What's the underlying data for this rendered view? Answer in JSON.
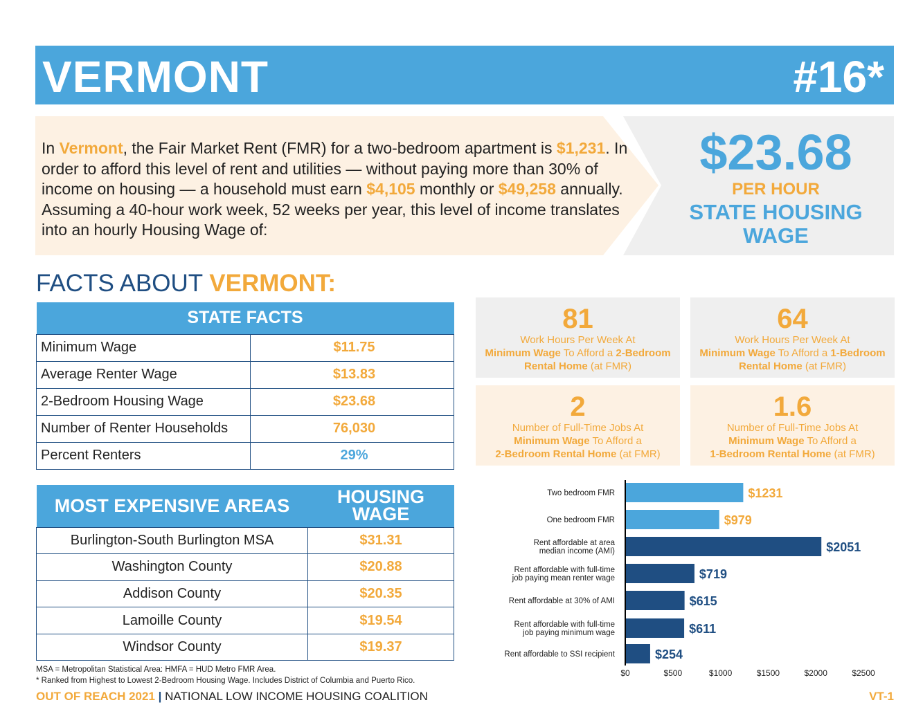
{
  "header": {
    "state": "VERMONT",
    "rank": "#16*"
  },
  "intro": {
    "p1": "In ",
    "state": "Vermont",
    "p2": ", the Fair Market Rent (FMR) for a two-bedroom apartment is ",
    "fmr": "$1,231",
    "p3": ". In order to afford this level of rent and utilities — without paying more than 30% of income on housing — a household must earn ",
    "monthly": "$4,105",
    "p4": " monthly or ",
    "annual": "$49,258",
    "p5": " annually. Assuming a 40-hour work week, 52 weeks per year, this level of income translates into an hourly Housing Wage of:"
  },
  "housing_wage": {
    "value": "$23.68",
    "per_hour": "PER HOUR",
    "label": "STATE HOUSING WAGE"
  },
  "facts_title": {
    "prefix": "FACTS ABOUT ",
    "state": "VERMONT:"
  },
  "state_facts": {
    "header": "STATE FACTS",
    "rows": [
      {
        "label": "Minimum Wage",
        "value": "$11.75"
      },
      {
        "label": "Average Renter Wage",
        "value": "$13.83"
      },
      {
        "label": "2-Bedroom Housing Wage",
        "value": "$23.68"
      },
      {
        "label": "Number of Renter Households",
        "value": "76,030"
      },
      {
        "label": "Percent Renters",
        "value": "29%"
      }
    ]
  },
  "expensive": {
    "header_area": "MOST EXPENSIVE AREAS",
    "header_wage": "HOUSING WAGE",
    "rows": [
      {
        "area": "Burlington-South Burlington MSA",
        "wage": "$31.31"
      },
      {
        "area": "Washington County",
        "wage": "$20.88"
      },
      {
        "area": "Addison County",
        "wage": "$20.35"
      },
      {
        "area": "Lamoille County",
        "wage": "$19.54"
      },
      {
        "area": "Windsor County",
        "wage": "$19.37"
      }
    ]
  },
  "cards": [
    {
      "number": "81",
      "line1": "Work Hours Per Week At",
      "b1": "Minimum Wage",
      "m1": " To Afford a ",
      "b2": "2-Bedroom Rental Home",
      "m2": " (at FMR)"
    },
    {
      "number": "64",
      "line1": "Work Hours Per Week At",
      "b1": "Minimum Wage",
      "m1": " To Afford a ",
      "b2": "1-Bedroom Rental Home",
      "m2": " (at FMR)"
    },
    {
      "number": "2",
      "line1": "Number of Full-Time Jobs At",
      "b1": "Minimum Wage",
      "m1": " To Afford a ",
      "b2": "2-Bedroom Rental Home",
      "m2": " (at FMR)"
    },
    {
      "number": "1.6",
      "line1": "Number of Full-Time Jobs At",
      "b1": "Minimum Wage",
      "m1": " To Afford a ",
      "b2": "1-Bedroom Rental Home",
      "m2": " (at FMR)"
    }
  ],
  "chart_data": {
    "type": "bar",
    "orientation": "horizontal",
    "categories": [
      "Two bedroom FMR",
      "One bedroom FMR",
      "Rent affordable at area median income (AMI)",
      "Rent affordable with full-time job paying mean renter wage",
      "Rent affordable at 30% of AMI",
      "Rent affordable with full-time job paying minimum wage",
      "Rent affordable to SSI recipient"
    ],
    "values": [
      1231,
      979,
      2051,
      719,
      615,
      611,
      254
    ],
    "data_labels": [
      "$1231",
      "$979",
      "$2051",
      "$719",
      "$615",
      "$611",
      "$254"
    ],
    "xlim": [
      0,
      2500
    ],
    "x_ticks": [
      "$0",
      "$500",
      "$1000",
      "$1500",
      "$2000",
      "$2500"
    ],
    "bar_colors": [
      "#4BA6DC",
      "#4BA6DC",
      "#1F4E82",
      "#1F4E82",
      "#1F4E82",
      "#1F4E82",
      "#1F4E82"
    ],
    "label_colors": [
      "#F2A93B",
      "#F2A93B",
      "#1F4E82",
      "#1F4E82",
      "#1F4E82",
      "#1F4E82",
      "#1F4E82"
    ],
    "grid": false
  },
  "notes": [
    "MSA = Metropolitan Statistical Area: HMFA = HUD Metro FMR Area.",
    "* Ranked from Highest to Lowest 2-Bedroom Housing Wage. Includes District of Columbia and Puerto Rico."
  ],
  "footer": {
    "report": "OUT OF REACH 2021",
    "sep": " | ",
    "org": "NATIONAL LOW INCOME HOUSING COALITION",
    "page": "VT-1"
  },
  "colors": {
    "blue": "#4BA6DC",
    "orange": "#F2A93B",
    "navy": "#1F4E82",
    "cream": "#FDF1E3",
    "gray": "#EFEFEF"
  }
}
